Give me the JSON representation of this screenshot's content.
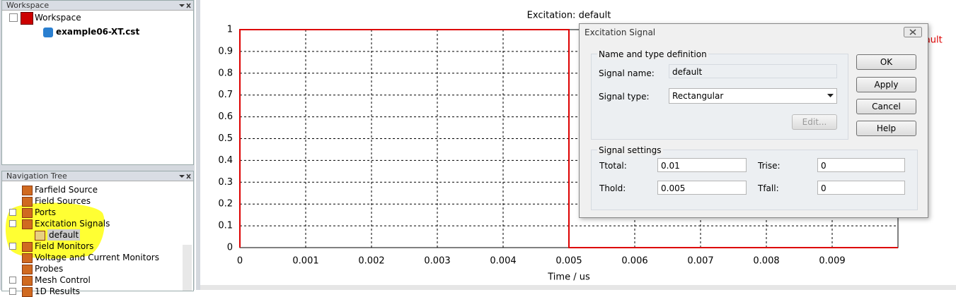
{
  "workspace_panel": {
    "title": "Workspace",
    "tree": [
      "Workspace",
      "example06-XT.cst"
    ]
  },
  "navigation_panel": {
    "title": "Navigation Tree",
    "items": [
      "Farfield Source",
      "Field Sources",
      "Ports",
      "Excitation Signals",
      "default",
      "Field Monitors",
      "Voltage and Current Monitors",
      "Probes",
      "Mesh Control",
      "1D Results"
    ]
  },
  "chart_data": {
    "type": "line",
    "title": "Excitation: default",
    "x_label": "Time / us",
    "x": [
      0,
      0,
      0.005,
      0.005,
      0.01
    ],
    "series": [
      {
        "name": "default",
        "color": "#dd0000",
        "values": [
          0,
          1,
          1,
          0,
          0
        ]
      }
    ],
    "xlim": [
      0,
      0.01
    ],
    "ylim": [
      0,
      1
    ],
    "xticks": [
      0,
      0.001,
      0.002,
      0.003,
      0.004,
      0.005,
      0.006,
      0.007,
      0.008,
      0.009
    ],
    "yticks": [
      0,
      0.1,
      0.2,
      0.3,
      0.4,
      0.5,
      0.6,
      0.7,
      0.8,
      0.9,
      1
    ],
    "grid": true
  },
  "dialog": {
    "title": "Excitation Signal",
    "group1": {
      "title": "Name and type definition",
      "name_label": "Signal name:",
      "name_value": "default",
      "type_label": "Signal type:",
      "type_value": "Rectangular",
      "edit_button": "Edit..."
    },
    "buttons": [
      "OK",
      "Apply",
      "Cancel",
      "Help"
    ],
    "group2": {
      "title": "Signal settings",
      "fields": [
        [
          "Ttotal:",
          "0.01"
        ],
        [
          "Trise:",
          "0"
        ],
        [
          "Thold:",
          "0.005"
        ],
        [
          "Tfall:",
          "0"
        ]
      ]
    }
  }
}
